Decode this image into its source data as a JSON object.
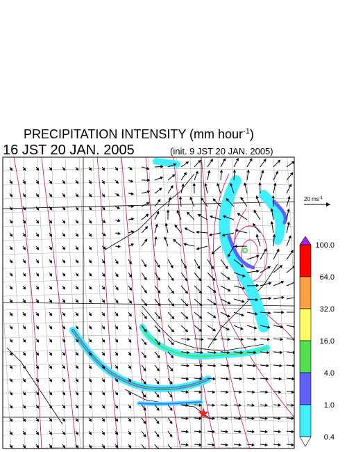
{
  "header": {
    "title": "PRECIPITATION INTENSITY (mm hour",
    "title_sup": "-1",
    "title_end": ")",
    "time": "16 JST 20 JAN. 2005",
    "init": "(init. 9 JST 20 JAN. 2005)"
  },
  "vector_scale": {
    "label": "20 ms",
    "sup": "-1"
  },
  "colorbar": {
    "labels": [
      "100.0",
      "64.0",
      "32.0",
      "16.0",
      "4.0",
      "1.0",
      "0.4"
    ],
    "colors": [
      "#a020f0",
      "#ff0000",
      "#ffa040",
      "#ffff60",
      "#50e050",
      "#6060ff",
      "#40f0ff",
      "#ffffff"
    ]
  }
}
